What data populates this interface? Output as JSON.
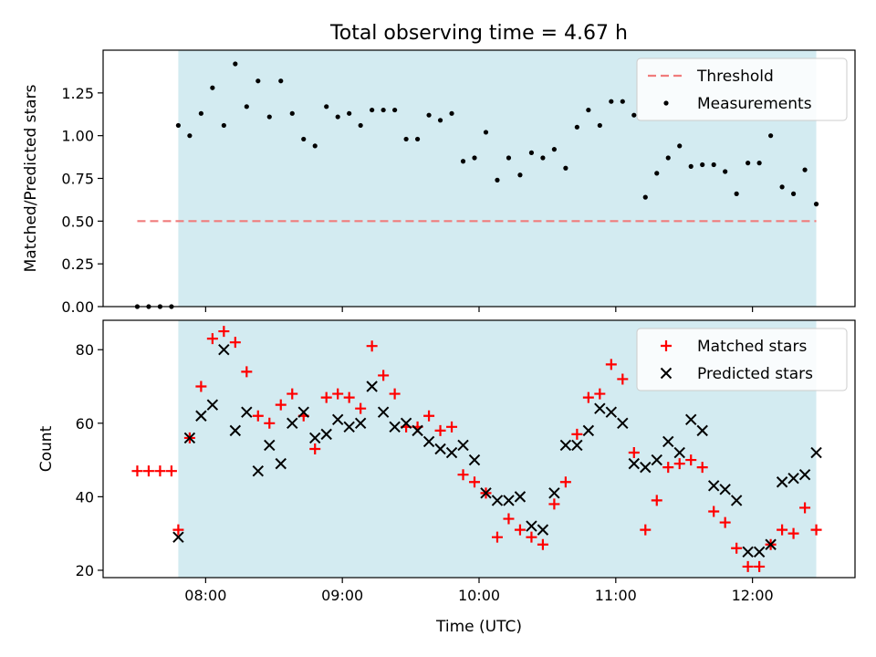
{
  "title": "Total observing time = 4.67 h",
  "chart_data": [
    {
      "type": "scatter",
      "ylabel": "Matched/Predicted stars",
      "xlim": [
        "07:15",
        "12:45"
      ],
      "ylim": [
        0,
        1.5
      ],
      "yticks": [
        "0.00",
        "0.25",
        "0.50",
        "0.75",
        "1.00",
        "1.25"
      ],
      "shaded_x": [
        "07:48",
        "12:28"
      ],
      "shade_color": "#d3ebf1",
      "legend_position": "top-right",
      "threshold": {
        "name": "Threshold",
        "y": 0.5,
        "x": [
          "07:30",
          "12:28"
        ],
        "color": "#f07c7c"
      },
      "series": [
        {
          "name": "Measurements",
          "color": "#000000",
          "marker": "dot",
          "points": [
            [
              "07:30",
              0.0
            ],
            [
              "07:35",
              0.0
            ],
            [
              "07:40",
              0.0
            ],
            [
              "07:45",
              0.0
            ],
            [
              "07:48",
              1.06
            ],
            [
              "07:53",
              1.0
            ],
            [
              "07:58",
              1.13
            ],
            [
              "08:03",
              1.28
            ],
            [
              "08:08",
              1.06
            ],
            [
              "08:13",
              1.42
            ],
            [
              "08:18",
              1.17
            ],
            [
              "08:23",
              1.32
            ],
            [
              "08:28",
              1.11
            ],
            [
              "08:33",
              1.32
            ],
            [
              "08:38",
              1.13
            ],
            [
              "08:43",
              0.98
            ],
            [
              "08:48",
              0.94
            ],
            [
              "08:53",
              1.17
            ],
            [
              "08:58",
              1.11
            ],
            [
              "09:03",
              1.13
            ],
            [
              "09:08",
              1.06
            ],
            [
              "09:13",
              1.15
            ],
            [
              "09:18",
              1.15
            ],
            [
              "09:23",
              1.15
            ],
            [
              "09:28",
              0.98
            ],
            [
              "09:33",
              0.98
            ],
            [
              "09:38",
              1.12
            ],
            [
              "09:43",
              1.09
            ],
            [
              "09:48",
              1.13
            ],
            [
              "09:53",
              0.85
            ],
            [
              "09:58",
              0.87
            ],
            [
              "10:03",
              1.02
            ],
            [
              "10:08",
              0.74
            ],
            [
              "10:13",
              0.87
            ],
            [
              "10:18",
              0.77
            ],
            [
              "10:23",
              0.9
            ],
            [
              "10:28",
              0.87
            ],
            [
              "10:33",
              0.92
            ],
            [
              "10:38",
              0.81
            ],
            [
              "10:43",
              1.05
            ],
            [
              "10:48",
              1.15
            ],
            [
              "10:53",
              1.06
            ],
            [
              "10:58",
              1.2
            ],
            [
              "11:03",
              1.2
            ],
            [
              "11:08",
              1.12
            ],
            [
              "11:13",
              0.64
            ],
            [
              "11:18",
              0.78
            ],
            [
              "11:23",
              0.87
            ],
            [
              "11:28",
              0.94
            ],
            [
              "11:33",
              0.82
            ],
            [
              "11:38",
              0.83
            ],
            [
              "11:43",
              0.83
            ],
            [
              "11:48",
              0.79
            ],
            [
              "11:53",
              0.66
            ],
            [
              "11:58",
              0.84
            ],
            [
              "12:03",
              0.84
            ],
            [
              "12:08",
              1.0
            ],
            [
              "12:13",
              0.7
            ],
            [
              "12:18",
              0.66
            ],
            [
              "12:23",
              0.8
            ],
            [
              "12:28",
              0.6
            ]
          ]
        }
      ]
    },
    {
      "type": "scatter",
      "xlabel": "Time (UTC)",
      "ylabel": "Count",
      "xlim": [
        "07:15",
        "12:45"
      ],
      "ylim": [
        18,
        88
      ],
      "xticks": [
        "08:00",
        "09:00",
        "10:00",
        "11:00",
        "12:00"
      ],
      "yticks": [
        20,
        40,
        60,
        80
      ],
      "shaded_x": [
        "07:48",
        "12:28"
      ],
      "legend_position": "top-right",
      "series": [
        {
          "name": "Matched stars",
          "color": "#ff0000",
          "marker": "plus",
          "points": [
            [
              "07:30",
              47
            ],
            [
              "07:35",
              47
            ],
            [
              "07:40",
              47
            ],
            [
              "07:45",
              47
            ],
            [
              "07:48",
              31
            ],
            [
              "07:53",
              56
            ],
            [
              "07:58",
              70
            ],
            [
              "08:03",
              83
            ],
            [
              "08:08",
              85
            ],
            [
              "08:13",
              82
            ],
            [
              "08:18",
              74
            ],
            [
              "08:23",
              62
            ],
            [
              "08:28",
              60
            ],
            [
              "08:33",
              65
            ],
            [
              "08:38",
              68
            ],
            [
              "08:43",
              62
            ],
            [
              "08:48",
              53
            ],
            [
              "08:53",
              67
            ],
            [
              "08:58",
              68
            ],
            [
              "09:03",
              67
            ],
            [
              "09:08",
              64
            ],
            [
              "09:13",
              81
            ],
            [
              "09:18",
              73
            ],
            [
              "09:23",
              68
            ],
            [
              "09:28",
              59
            ],
            [
              "09:33",
              59
            ],
            [
              "09:38",
              62
            ],
            [
              "09:43",
              58
            ],
            [
              "09:48",
              59
            ],
            [
              "09:53",
              46
            ],
            [
              "09:58",
              44
            ],
            [
              "10:03",
              41
            ],
            [
              "10:08",
              29
            ],
            [
              "10:13",
              34
            ],
            [
              "10:18",
              31
            ],
            [
              "10:23",
              29
            ],
            [
              "10:28",
              27
            ],
            [
              "10:33",
              38
            ],
            [
              "10:38",
              44
            ],
            [
              "10:43",
              57
            ],
            [
              "10:48",
              67
            ],
            [
              "10:53",
              68
            ],
            [
              "10:58",
              76
            ],
            [
              "11:03",
              72
            ],
            [
              "11:08",
              52
            ],
            [
              "11:13",
              31
            ],
            [
              "11:18",
              39
            ],
            [
              "11:23",
              48
            ],
            [
              "11:28",
              49
            ],
            [
              "11:33",
              50
            ],
            [
              "11:38",
              48
            ],
            [
              "11:43",
              36
            ],
            [
              "11:48",
              33
            ],
            [
              "11:53",
              26
            ],
            [
              "11:58",
              21
            ],
            [
              "12:03",
              21
            ],
            [
              "12:08",
              27
            ],
            [
              "12:13",
              31
            ],
            [
              "12:18",
              30
            ],
            [
              "12:23",
              37
            ],
            [
              "12:28",
              31
            ]
          ]
        },
        {
          "name": "Predicted stars",
          "color": "#000000",
          "marker": "x",
          "points": [
            [
              "07:48",
              29
            ],
            [
              "07:53",
              56
            ],
            [
              "07:58",
              62
            ],
            [
              "08:03",
              65
            ],
            [
              "08:08",
              80
            ],
            [
              "08:13",
              58
            ],
            [
              "08:18",
              63
            ],
            [
              "08:23",
              47
            ],
            [
              "08:28",
              54
            ],
            [
              "08:33",
              49
            ],
            [
              "08:38",
              60
            ],
            [
              "08:43",
              63
            ],
            [
              "08:48",
              56
            ],
            [
              "08:53",
              57
            ],
            [
              "08:58",
              61
            ],
            [
              "09:03",
              59
            ],
            [
              "09:08",
              60
            ],
            [
              "09:13",
              70
            ],
            [
              "09:18",
              63
            ],
            [
              "09:23",
              59
            ],
            [
              "09:28",
              60
            ],
            [
              "09:33",
              58
            ],
            [
              "09:38",
              55
            ],
            [
              "09:43",
              53
            ],
            [
              "09:48",
              52
            ],
            [
              "09:53",
              54
            ],
            [
              "09:58",
              50
            ],
            [
              "10:03",
              41
            ],
            [
              "10:08",
              39
            ],
            [
              "10:13",
              39
            ],
            [
              "10:18",
              40
            ],
            [
              "10:23",
              32
            ],
            [
              "10:28",
              31
            ],
            [
              "10:33",
              41
            ],
            [
              "10:38",
              54
            ],
            [
              "10:43",
              54
            ],
            [
              "10:48",
              58
            ],
            [
              "10:53",
              64
            ],
            [
              "10:58",
              63
            ],
            [
              "11:03",
              60
            ],
            [
              "11:08",
              49
            ],
            [
              "11:13",
              48
            ],
            [
              "11:18",
              50
            ],
            [
              "11:23",
              55
            ],
            [
              "11:28",
              52
            ],
            [
              "11:33",
              61
            ],
            [
              "11:38",
              58
            ],
            [
              "11:43",
              43
            ],
            [
              "11:48",
              42
            ],
            [
              "11:53",
              39
            ],
            [
              "11:58",
              25
            ],
            [
              "12:03",
              25
            ],
            [
              "12:08",
              27
            ],
            [
              "12:13",
              44
            ],
            [
              "12:18",
              45
            ],
            [
              "12:23",
              46
            ],
            [
              "12:28",
              52
            ]
          ]
        }
      ]
    }
  ]
}
